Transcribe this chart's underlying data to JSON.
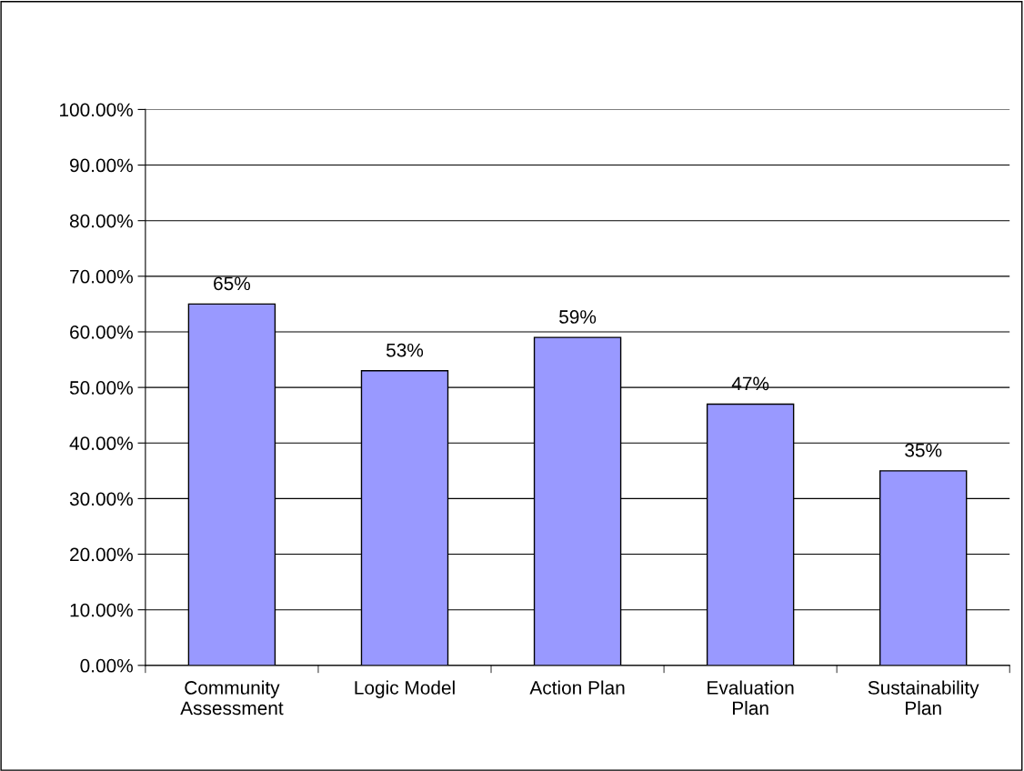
{
  "chart_data": {
    "type": "bar",
    "categories": [
      "Community\nAssessment",
      "Logic Model",
      "Action Plan",
      "Evaluation\nPlan",
      "Sustainability\nPlan"
    ],
    "values": [
      65,
      53,
      59,
      47,
      35
    ],
    "value_labels": [
      "65%",
      "53%",
      "59%",
      "47%",
      "35%"
    ],
    "color": "#9999ff",
    "ylim": [
      0,
      100
    ],
    "yticks": [
      {
        "value": 0,
        "label": "0.00%"
      },
      {
        "value": 10,
        "label": "10.00%"
      },
      {
        "value": 20,
        "label": "20.00%"
      },
      {
        "value": 30,
        "label": "30.00%"
      },
      {
        "value": 40,
        "label": "40.00%"
      },
      {
        "value": 50,
        "label": "50.00%"
      },
      {
        "value": 60,
        "label": "60.00%"
      },
      {
        "value": 70,
        "label": "70.00%"
      },
      {
        "value": 80,
        "label": "80.00%"
      },
      {
        "value": 90,
        "label": "90.00%"
      },
      {
        "value": 100,
        "label": "100.00%"
      }
    ],
    "grid": "y",
    "legend": false
  }
}
